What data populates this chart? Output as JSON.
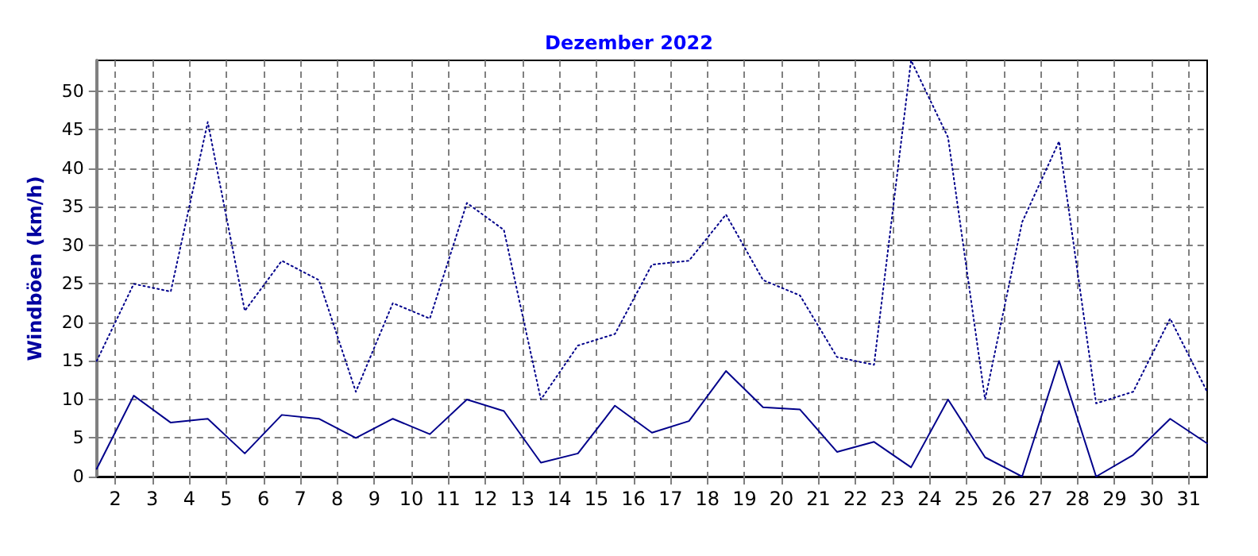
{
  "chart_data": {
    "type": "line",
    "title": "Dezember 2022",
    "ylabel": "Windböen (km/h)",
    "x": [
      1.5,
      2.5,
      3.5,
      4.5,
      5.5,
      6.5,
      7.5,
      8.5,
      9.5,
      10.5,
      11.5,
      12.5,
      13.5,
      14.5,
      15.5,
      16.5,
      17.5,
      18.5,
      19.5,
      20.5,
      21.5,
      22.5,
      23.5,
      24.5,
      25.5,
      26.5,
      27.5,
      28.5,
      29.5,
      30.5,
      31.5
    ],
    "series": [
      {
        "color": "#00008b",
        "line_style": "dotted",
        "values": [
          15,
          25,
          24,
          46,
          21.5,
          28,
          25.5,
          11,
          22.5,
          20.5,
          35.5,
          32,
          10,
          17,
          18.5,
          27.5,
          28,
          34,
          25.5,
          23.5,
          15.5,
          14.5,
          54,
          44,
          10,
          33,
          43.5,
          9.5,
          11,
          20.5,
          11
        ]
      },
      {
        "color": "#00008b",
        "line_style": "solid",
        "values": [
          1,
          10.5,
          7,
          7.5,
          3,
          8,
          7.5,
          5,
          7.5,
          5.5,
          10,
          8.5,
          1.8,
          3,
          9.2,
          5.7,
          7.2,
          13.7,
          9,
          8.7,
          3.2,
          4.5,
          1.2,
          10,
          2.5,
          0,
          15,
          0,
          2.8,
          7.5,
          4.3
        ]
      }
    ],
    "xlim": [
      1.5,
      31.5
    ],
    "xticks": [
      2,
      3,
      4,
      5,
      6,
      7,
      8,
      9,
      10,
      11,
      12,
      13,
      14,
      15,
      16,
      17,
      18,
      19,
      20,
      21,
      22,
      23,
      24,
      25,
      26,
      27,
      28,
      29,
      30,
      31
    ],
    "ylim": [
      0,
      54
    ],
    "yticks": [
      0,
      5,
      10,
      15,
      20,
      25,
      30,
      35,
      40,
      45,
      50
    ],
    "grid": true,
    "marker": "none"
  }
}
